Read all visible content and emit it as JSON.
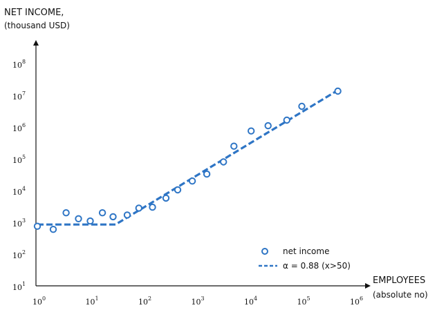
{
  "chart_data": {
    "type": "scatter",
    "y_title": "NET INCOME,",
    "y_subtitle": "(thousand USD)",
    "x_title": "EMPLOYEES",
    "x_subtitle": "(absolute no)",
    "x_scale": "log",
    "y_scale": "log",
    "xlim": [
      1,
      1000000
    ],
    "ylim": [
      10,
      100000000
    ],
    "x_ticks": [
      {
        "base": "10",
        "exp": "0",
        "value": 1
      },
      {
        "base": "10",
        "exp": "1",
        "value": 10
      },
      {
        "base": "10",
        "exp": "2",
        "value": 100
      },
      {
        "base": "10",
        "exp": "3",
        "value": 1000
      },
      {
        "base": "10",
        "exp": "4",
        "value": 10000
      },
      {
        "base": "10",
        "exp": "5",
        "value": 100000
      },
      {
        "base": "10",
        "exp": "6",
        "value": 1000000
      }
    ],
    "y_ticks": [
      {
        "base": "10",
        "exp": "1",
        "value": 10
      },
      {
        "base": "10",
        "exp": "2",
        "value": 100
      },
      {
        "base": "10",
        "exp": "3",
        "value": 1000
      },
      {
        "base": "10",
        "exp": "4",
        "value": 10000
      },
      {
        "base": "10",
        "exp": "5",
        "value": 100000
      },
      {
        "base": "10",
        "exp": "6",
        "value": 1000000
      },
      {
        "base": "10",
        "exp": "7",
        "value": 10000000
      },
      {
        "base": "10",
        "exp": "8",
        "value": 100000000
      }
    ],
    "grid": false,
    "legend_position": "bottom-right",
    "color": "#2E75C5",
    "series": [
      {
        "name": "net income",
        "kind": "scatter",
        "marker": "open-circle",
        "points": [
          {
            "x": 1,
            "y": 750
          },
          {
            "x": 2,
            "y": 600
          },
          {
            "x": 3.5,
            "y": 2000
          },
          {
            "x": 6,
            "y": 1300
          },
          {
            "x": 10,
            "y": 1100
          },
          {
            "x": 17,
            "y": 2000
          },
          {
            "x": 27,
            "y": 1500
          },
          {
            "x": 50,
            "y": 1700
          },
          {
            "x": 83,
            "y": 2800
          },
          {
            "x": 150,
            "y": 3000
          },
          {
            "x": 270,
            "y": 5800
          },
          {
            "x": 450,
            "y": 10500
          },
          {
            "x": 850,
            "y": 20000
          },
          {
            "x": 1600,
            "y": 33000
          },
          {
            "x": 3300,
            "y": 80000
          },
          {
            "x": 5200,
            "y": 250000
          },
          {
            "x": 11000,
            "y": 750000
          },
          {
            "x": 23000,
            "y": 1100000
          },
          {
            "x": 52000,
            "y": 1650000
          },
          {
            "x": 100000,
            "y": 4500000
          },
          {
            "x": 480000,
            "y": 13500000
          }
        ]
      },
      {
        "name": "α = 0.88 (x>50)",
        "kind": "line",
        "style": "dashed",
        "points": [
          {
            "x": 1,
            "y": 850
          },
          {
            "x": 30,
            "y": 850
          },
          {
            "x": 500000,
            "y": 15000000
          }
        ]
      }
    ]
  }
}
